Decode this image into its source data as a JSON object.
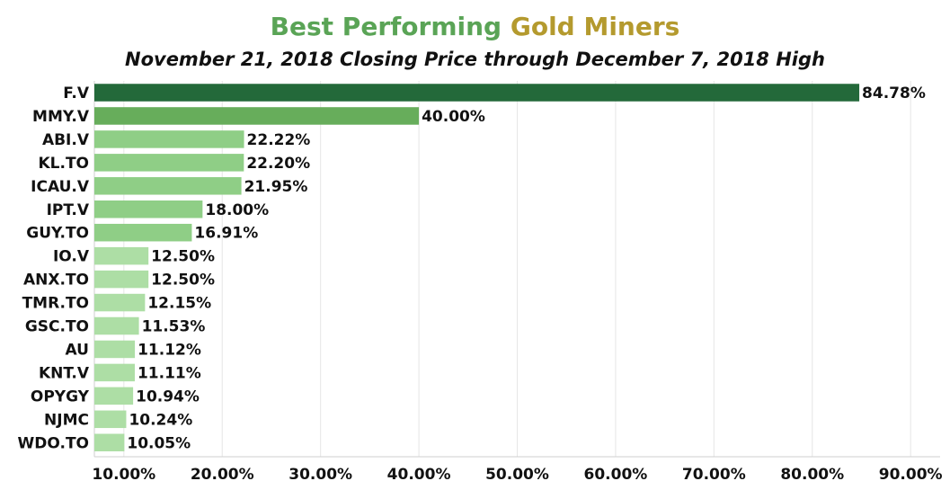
{
  "chart_data": {
    "type": "bar",
    "orientation": "horizontal",
    "title_part1": "Best Performing",
    "title_part2": "Gold Miners",
    "subtitle": "November 21, 2018 Closing Price through December 7, 2018 High",
    "categories": [
      "F.V",
      "MMY.V",
      "ABI.V",
      "KL.TO",
      "ICAU.V",
      "IPT.V",
      "GUY.TO",
      "IO.V",
      "ANX.TO",
      "TMR.TO",
      "GSC.TO",
      "AU",
      "KNT.V",
      "OPYGY",
      "NJMC",
      "WDO.TO"
    ],
    "values": [
      84.78,
      40.0,
      22.22,
      22.2,
      21.95,
      18.0,
      16.91,
      12.5,
      12.5,
      12.15,
      11.53,
      11.12,
      11.11,
      10.94,
      10.24,
      10.05
    ],
    "data_labels": [
      "84.78%",
      "40.00%",
      "22.22%",
      "22.20%",
      "21.95%",
      "18.00%",
      "16.91%",
      "12.50%",
      "12.50%",
      "12.15%",
      "11.53%",
      "11.12%",
      "11.11%",
      "10.94%",
      "10.24%",
      "10.05%"
    ],
    "bar_colors": [
      "#23693a",
      "#67ad5b",
      "#8fce86",
      "#8fce86",
      "#8fce86",
      "#8fce86",
      "#8fce86",
      "#addea5",
      "#addea5",
      "#addea5",
      "#addea5",
      "#addea5",
      "#addea5",
      "#addea5",
      "#addea5",
      "#addea5"
    ],
    "xlim": [
      7.0,
      93.0
    ],
    "x_ticks": [
      10,
      20,
      30,
      40,
      50,
      60,
      70,
      80,
      90
    ],
    "x_tick_labels": [
      "10.00%",
      "20.00%",
      "30.00%",
      "40.00%",
      "50.00%",
      "60.00%",
      "70.00%",
      "80.00%",
      "90.00%"
    ],
    "xlabel": "",
    "ylabel": "",
    "grid": "vertical",
    "legend": "none",
    "colors": {
      "title_green": "#5aa456",
      "title_gold": "#b49a2e",
      "grid": "#e6e6e6"
    }
  }
}
